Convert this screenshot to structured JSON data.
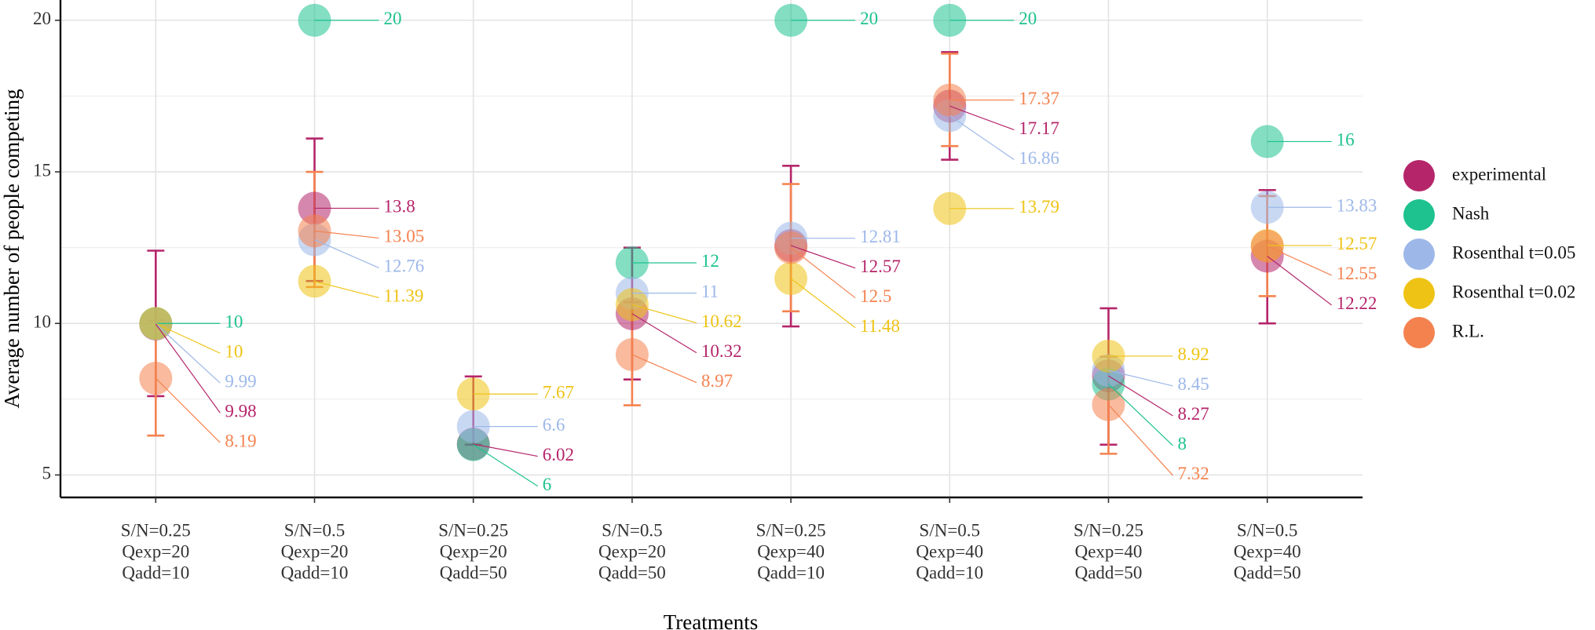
{
  "chart_data": {
    "type": "dot",
    "x_label": "Treatments",
    "y_label": "Average number of people competing",
    "categories": [
      [
        "S/N=0.25",
        "Qexp=20",
        "Qadd=10"
      ],
      [
        "S/N=0.5",
        "Qexp=20",
        "Qadd=10"
      ],
      [
        "S/N=0.25",
        "Qexp=20",
        "Qadd=50"
      ],
      [
        "S/N=0.5",
        "Qexp=20",
        "Qadd=50"
      ],
      [
        "S/N=0.25",
        "Qexp=40",
        "Qadd=10"
      ],
      [
        "S/N=0.5",
        "Qexp=40",
        "Qadd=10"
      ],
      [
        "S/N=0.25",
        "Qexp=40",
        "Qadd=50"
      ],
      [
        "S/N=0.5",
        "Qexp=40",
        "Qadd=50"
      ]
    ],
    "series": [
      {
        "name": "experimental",
        "color": "#b5256a",
        "values": [
          9.98,
          13.8,
          6.02,
          10.32,
          12.57,
          17.17,
          8.27,
          12.22
        ],
        "error_low": [
          7.6,
          11.4,
          6.0,
          8.15,
          9.9,
          15.4,
          6.0,
          10.0
        ],
        "error_high": [
          12.4,
          16.1,
          8.25,
          12.5,
          15.2,
          18.95,
          10.5,
          14.4
        ]
      },
      {
        "name": "Nash",
        "color": "#1dc28f",
        "values": [
          10,
          20,
          6,
          12,
          20,
          20,
          8,
          16
        ]
      },
      {
        "name": "Rosenthal t=0.05",
        "color": "#9db8e8",
        "values": [
          9.99,
          12.76,
          6.6,
          11,
          12.81,
          16.86,
          8.45,
          13.83
        ]
      },
      {
        "name": "Rosenthal t=0.02",
        "color": "#efc315",
        "values": [
          10,
          11.39,
          7.67,
          10.62,
          11.48,
          13.79,
          8.92,
          12.57
        ]
      },
      {
        "name": "R.L.",
        "color": "#f4824f",
        "values": [
          8.19,
          13.05,
          null,
          8.97,
          12.5,
          17.37,
          7.32,
          12.55
        ],
        "error_low": [
          6.3,
          11.2,
          null,
          7.3,
          10.4,
          15.85,
          5.7,
          10.9
        ],
        "error_high": [
          10.1,
          15.0,
          null,
          10.7,
          14.6,
          18.9,
          8.9,
          14.2
        ]
      }
    ],
    "ylim": [
      4.26,
      20.67
    ],
    "yticks": [
      5,
      10,
      15,
      20
    ],
    "minor_yticks": [
      7.5,
      12.5,
      17.5
    ],
    "grid": true
  }
}
